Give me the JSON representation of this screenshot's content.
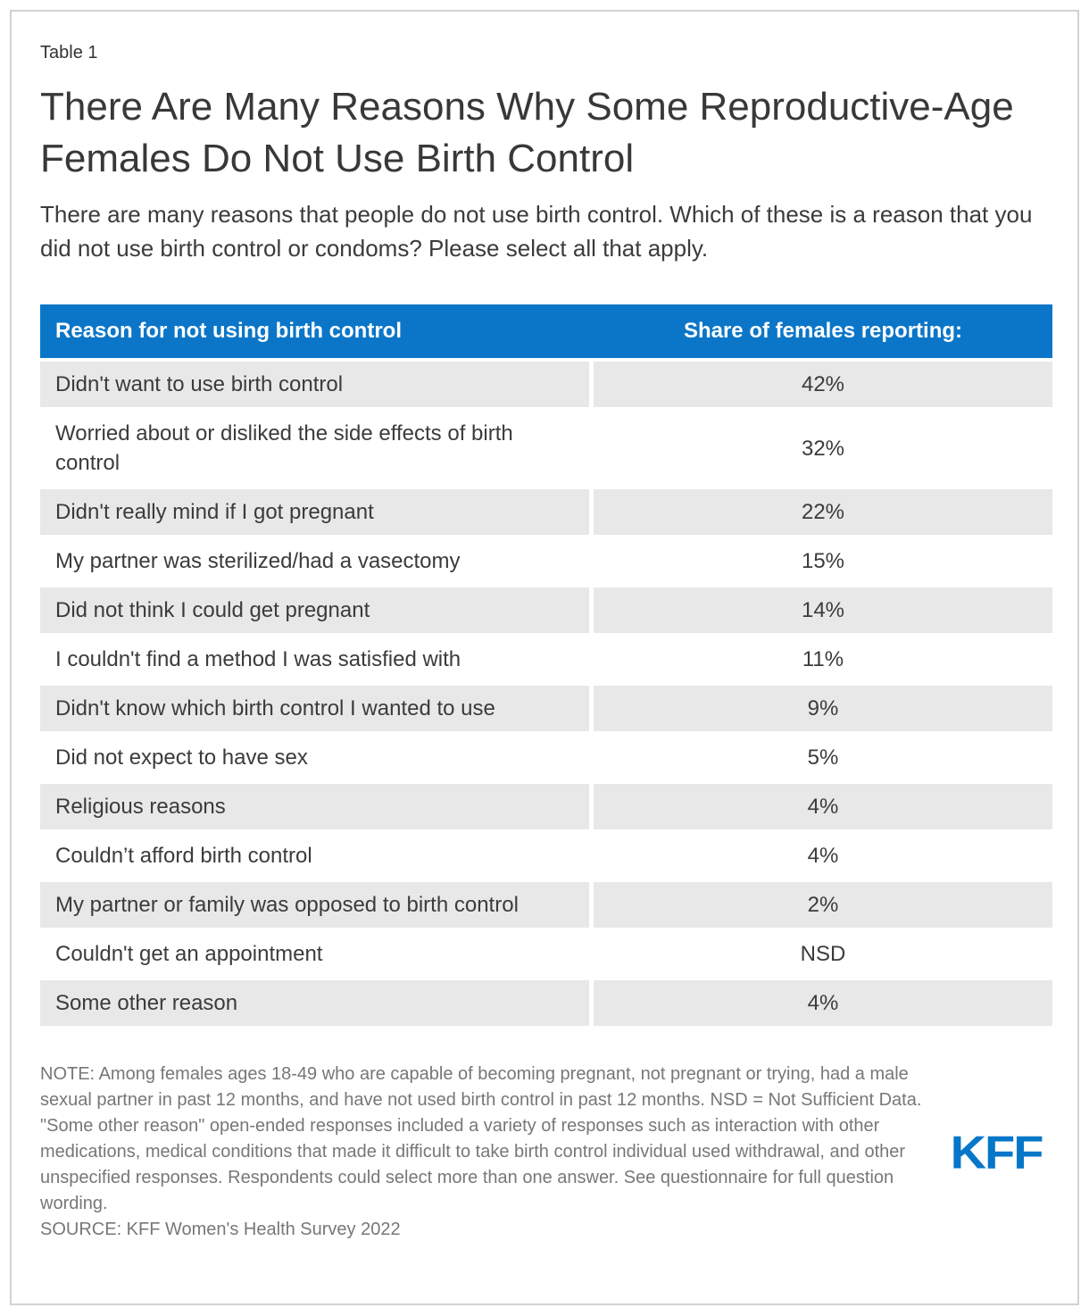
{
  "page": {
    "table_label": "Table 1",
    "title": "There Are Many Reasons Why Some Reproductive-Age Females Do Not Use Birth Control",
    "subtitle": "There are many reasons that people do not use birth control. Which of these is a reason that you did not use birth control or condoms? Please select all that apply."
  },
  "chart_data": {
    "type": "table",
    "title": "There Are Many Reasons Why Some Reproductive-Age Females Do Not Use Birth Control",
    "columns": [
      "Reason for not using birth control",
      "Share of females reporting:"
    ],
    "rows": [
      [
        "Didn't want to use birth control",
        "42%"
      ],
      [
        "Worried about or disliked the side effects of birth control",
        "32%"
      ],
      [
        "Didn't really mind if I got pregnant",
        "22%"
      ],
      [
        "My partner was sterilized/had a vasectomy",
        "15%"
      ],
      [
        "Did not think I could get pregnant",
        "14%"
      ],
      [
        "I couldn't find a method I was satisfied with",
        "11%"
      ],
      [
        "Didn't know which birth control I wanted to use",
        "9%"
      ],
      [
        "Did not expect to have sex",
        "5%"
      ],
      [
        "Religious reasons",
        "4%"
      ],
      [
        "Couldn’t afford birth control",
        "4%"
      ],
      [
        "My partner or family was opposed to birth control",
        "2%"
      ],
      [
        "Couldn't get an appointment",
        "NSD"
      ],
      [
        "Some other reason",
        "4%"
      ]
    ]
  },
  "footer": {
    "note": "NOTE: Among females ages 18-49 who are capable of becoming pregnant, not pregnant or trying, had a male sexual partner in past 12 months, and have not used birth control in past 12 months. NSD = Not Sufficient Data. \"Some other reason\" open-ended responses included a variety of responses such as interaction with other medications, medical conditions that made it difficult to take birth control individual used withdrawal, and other unspecified responses. Respondents could select more than one answer. See questionnaire for full question wording.",
    "source": "SOURCE: KFF Women's Health Survey 2022",
    "logo_text": "KFF"
  },
  "colors": {
    "header_blue": "#0B76C8",
    "row_gray": "#E8E8E8",
    "note_gray": "#777777",
    "logo_blue": "#0677C8",
    "text_dark": "#3B3B3B"
  }
}
